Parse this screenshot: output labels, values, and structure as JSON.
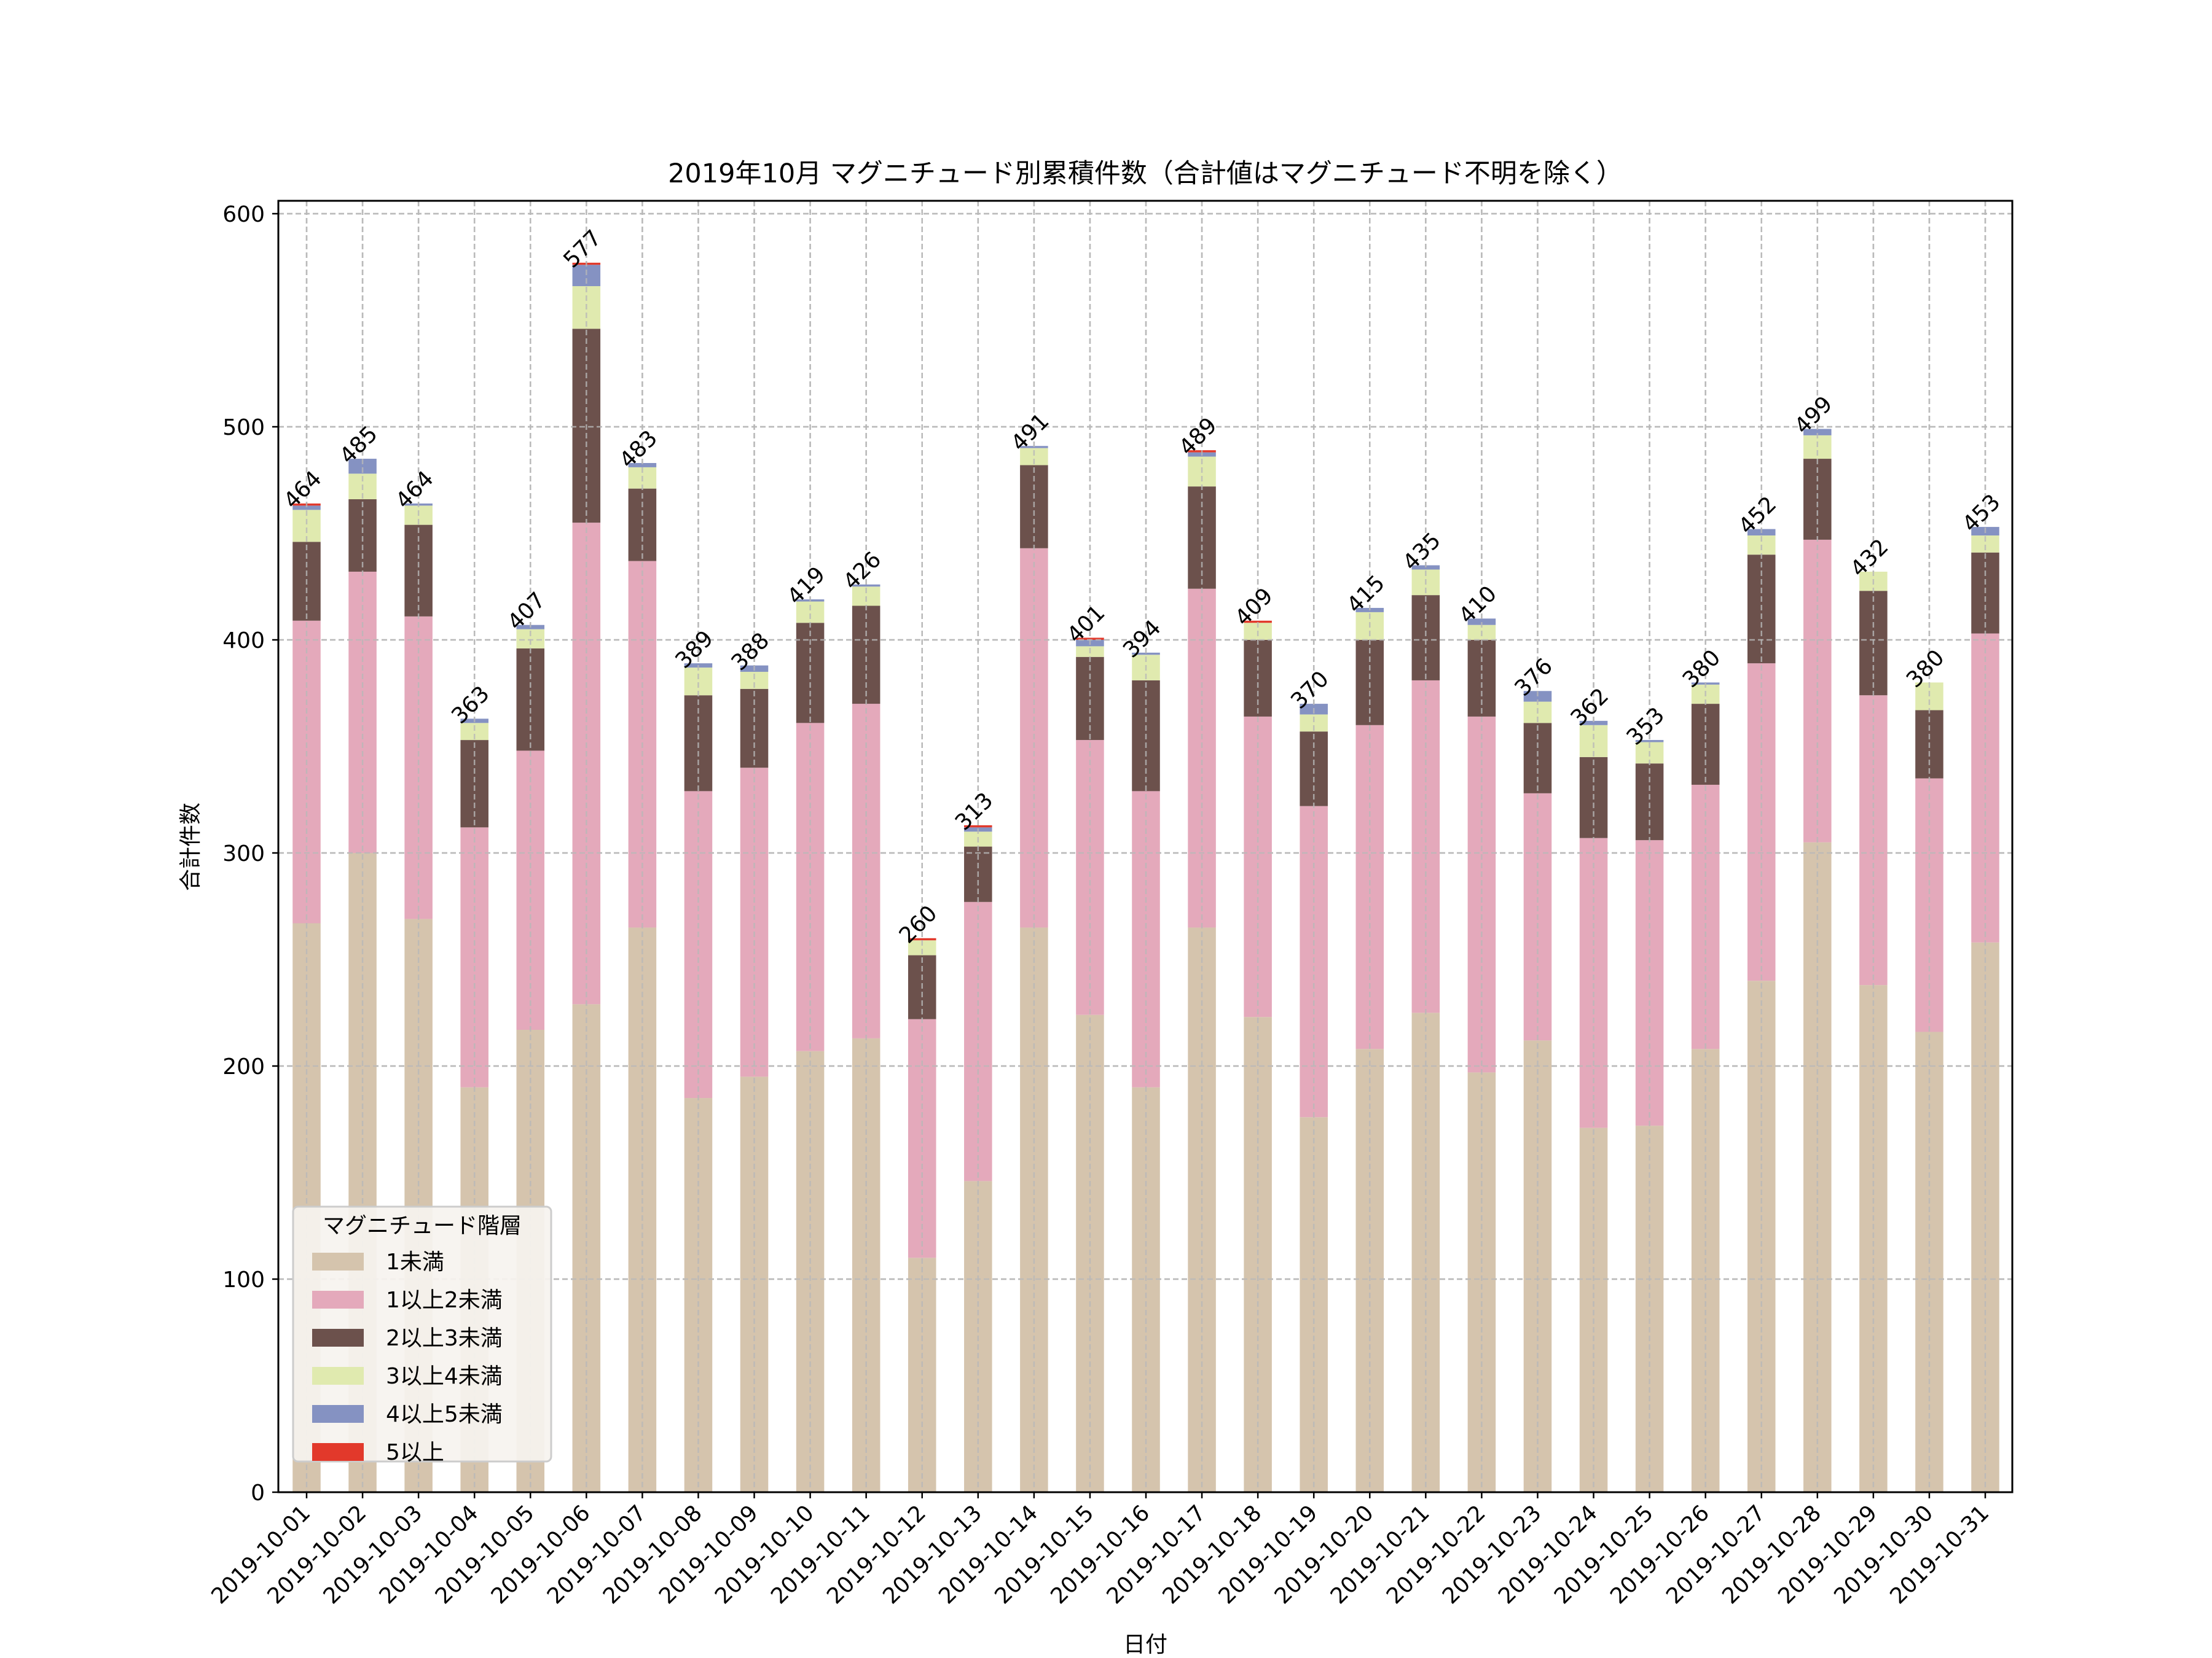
{
  "chart_data": {
    "type": "bar",
    "stacked": true,
    "title": "2019年10月 マグニチュード別累積件数（合計値はマグニチュード不明を除く）",
    "xlabel": "日付",
    "ylabel": "合計件数",
    "ylim": [
      0,
      605
    ],
    "yticks": [
      0,
      100,
      200,
      300,
      400,
      500,
      600
    ],
    "grid": true,
    "legend": {
      "title": "マグニチュード階層",
      "placement": "lower-left"
    },
    "categories": [
      "2019-10-01",
      "2019-10-02",
      "2019-10-03",
      "2019-10-04",
      "2019-10-05",
      "2019-10-06",
      "2019-10-07",
      "2019-10-08",
      "2019-10-09",
      "2019-10-10",
      "2019-10-11",
      "2019-10-12",
      "2019-10-13",
      "2019-10-14",
      "2019-10-15",
      "2019-10-16",
      "2019-10-17",
      "2019-10-18",
      "2019-10-19",
      "2019-10-20",
      "2019-10-21",
      "2019-10-22",
      "2019-10-23",
      "2019-10-24",
      "2019-10-25",
      "2019-10-26",
      "2019-10-27",
      "2019-10-28",
      "2019-10-29",
      "2019-10-30",
      "2019-10-31"
    ],
    "series": [
      {
        "name": "1未満",
        "color": "#d5c4ad",
        "values": [
          267,
          300,
          269,
          190,
          217,
          229,
          265,
          185,
          195,
          207,
          213,
          110,
          146,
          265,
          224,
          190,
          265,
          223,
          176,
          208,
          225,
          197,
          212,
          171,
          172,
          208,
          240,
          305,
          238,
          216,
          258
        ]
      },
      {
        "name": "1以上2未満",
        "color": "#e4a9bb",
        "values": [
          142,
          132,
          142,
          122,
          131,
          226,
          172,
          144,
          145,
          154,
          157,
          112,
          131,
          178,
          129,
          139,
          159,
          141,
          146,
          152,
          156,
          167,
          116,
          136,
          134,
          124,
          149,
          142,
          136,
          119,
          145
        ]
      },
      {
        "name": "2以上3未満",
        "color": "#6c514c",
        "values": [
          37,
          34,
          43,
          41,
          48,
          91,
          34,
          45,
          37,
          47,
          46,
          30,
          26,
          39,
          39,
          52,
          48,
          36,
          35,
          40,
          40,
          36,
          33,
          38,
          36,
          38,
          51,
          38,
          49,
          32,
          38
        ]
      },
      {
        "name": "3以上4未満",
        "color": "#e0eaaf",
        "values": [
          15,
          12,
          9,
          8,
          9,
          20,
          10,
          13,
          8,
          10,
          9,
          7,
          7,
          8,
          5,
          12,
          14,
          8,
          8,
          13,
          12,
          7,
          10,
          15,
          10,
          9,
          9,
          11,
          9,
          13,
          8
        ]
      },
      {
        "name": "4以上5未満",
        "color": "#8592c2",
        "values": [
          2,
          7,
          1,
          2,
          2,
          10,
          2,
          2,
          3,
          1,
          1,
          0,
          2,
          1,
          3,
          1,
          2,
          0,
          5,
          2,
          2,
          3,
          5,
          2,
          1,
          1,
          3,
          3,
          0,
          0,
          4
        ]
      },
      {
        "name": "5以上",
        "color": "#e2392b",
        "values": [
          1,
          0,
          0,
          0,
          0,
          1,
          0,
          0,
          0,
          0,
          0,
          1,
          1,
          0,
          1,
          0,
          1,
          1,
          0,
          0,
          0,
          0,
          0,
          0,
          0,
          0,
          0,
          0,
          0,
          0,
          0
        ]
      }
    ],
    "totals": [
      464,
      485,
      464,
      363,
      407,
      577,
      483,
      389,
      388,
      419,
      426,
      260,
      313,
      491,
      401,
      394,
      489,
      409,
      370,
      415,
      435,
      410,
      376,
      362,
      353,
      380,
      452,
      499,
      432,
      380,
      453
    ]
  }
}
